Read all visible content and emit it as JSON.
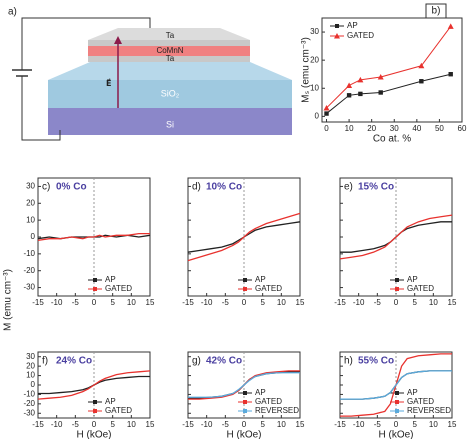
{
  "diagram": {
    "label": "a)",
    "layers": [
      "Ta",
      "CoMnN",
      "Ta",
      "SiO₂",
      "Si"
    ],
    "field": "E⃗"
  },
  "chart_data": [
    {
      "type": "line",
      "panel": "b)",
      "xlabel": "Co at. %",
      "ylabel": "Mₛ (emu cm⁻³)",
      "x": [
        0,
        10,
        15,
        24,
        42,
        55
      ],
      "series": [
        {
          "name": "AP",
          "color": "#222222",
          "marker": "square",
          "values": [
            1,
            7.5,
            8,
            8.5,
            12.5,
            15
          ]
        },
        {
          "name": "GATED",
          "color": "#e8322e",
          "marker": "triangle",
          "values": [
            3,
            11,
            13,
            14,
            18,
            32
          ]
        }
      ],
      "xlim": [
        -2,
        60
      ],
      "xticks": [
        0,
        10,
        20,
        30,
        40,
        50,
        60
      ],
      "ylim": [
        -2,
        35
      ],
      "yticks": [
        0,
        10,
        20,
        30
      ],
      "legend": "upper left"
    },
    {
      "type": "line",
      "panel": "c)",
      "title": "0% Co",
      "ylabel": "M (emu cm⁻³)",
      "x": [
        -15,
        -12,
        -9,
        -6,
        -3,
        -1.5,
        0,
        1.5,
        3,
        6,
        9,
        12,
        15
      ],
      "series": [
        {
          "name": "AP",
          "color": "#222222",
          "values": [
            -1,
            0,
            -1,
            0,
            0,
            0,
            0,
            0,
            1,
            0,
            1,
            0,
            1
          ]
        },
        {
          "name": "GATED",
          "color": "#e8322e",
          "values": [
            -2,
            -1,
            -1,
            0,
            -1,
            0,
            0,
            1,
            0,
            1,
            1,
            2,
            2
          ]
        }
      ],
      "xlim": [
        -15,
        15
      ],
      "xticks": [
        -15,
        -10,
        -5,
        0,
        5,
        10,
        15
      ],
      "ylim": [
        -35,
        35
      ],
      "yticks": [
        -30,
        -20,
        -10,
        0,
        10,
        20,
        30
      ],
      "legend": "lower right"
    },
    {
      "type": "line",
      "panel": "d)",
      "title": "10% Co",
      "x": [
        -15,
        -12,
        -9,
        -6,
        -3,
        -1.5,
        0,
        1.5,
        3,
        6,
        9,
        12,
        15
      ],
      "series": [
        {
          "name": "AP",
          "color": "#222222",
          "values": [
            -9,
            -8,
            -7,
            -6,
            -4,
            -2,
            0,
            2,
            4,
            6,
            7,
            8,
            9
          ]
        },
        {
          "name": "GATED",
          "color": "#e8322e",
          "values": [
            -14,
            -12,
            -10,
            -8,
            -5,
            -3,
            0,
            3,
            5,
            8,
            10,
            12,
            14
          ]
        }
      ],
      "xlim": [
        -15,
        15
      ],
      "xticks": [
        -15,
        -10,
        -5,
        0,
        5,
        10,
        15
      ],
      "ylim": [
        -35,
        35
      ],
      "yticks": [
        -30,
        -20,
        -10,
        0,
        10,
        20,
        30
      ],
      "legend": "lower right"
    },
    {
      "type": "line",
      "panel": "e)",
      "title": "15% Co",
      "x": [
        -15,
        -12,
        -9,
        -6,
        -3,
        -1.5,
        0,
        1.5,
        3,
        6,
        9,
        12,
        15
      ],
      "series": [
        {
          "name": "AP",
          "color": "#222222",
          "values": [
            -9,
            -9,
            -8,
            -7,
            -5,
            -3,
            0,
            3,
            5,
            7,
            8,
            9,
            9
          ]
        },
        {
          "name": "GATED",
          "color": "#e8322e",
          "values": [
            -13,
            -12,
            -11,
            -9,
            -6,
            -3,
            0,
            3,
            6,
            9,
            11,
            12,
            13
          ]
        }
      ],
      "xlim": [
        -15,
        15
      ],
      "xticks": [
        -15,
        -10,
        -5,
        0,
        5,
        10,
        15
      ],
      "ylim": [
        -35,
        35
      ],
      "yticks": [
        -30,
        -20,
        -10,
        0,
        10,
        20,
        30
      ],
      "legend": "lower right"
    },
    {
      "type": "line",
      "panel": "f)",
      "title": "24% Co",
      "xlabel": "H (kOe)",
      "x": [
        -15,
        -12,
        -9,
        -6,
        -3,
        -1.5,
        0,
        1.5,
        3,
        6,
        9,
        12,
        15
      ],
      "series": [
        {
          "name": "AP",
          "color": "#222222",
          "values": [
            -9,
            -9,
            -8,
            -7,
            -5,
            -3,
            0,
            3,
            5,
            7,
            8,
            9,
            9
          ]
        },
        {
          "name": "GATED",
          "color": "#e8322e",
          "values": [
            -15,
            -14,
            -13,
            -11,
            -7,
            -4,
            0,
            4,
            7,
            11,
            13,
            14,
            15
          ]
        }
      ],
      "xlim": [
        -15,
        15
      ],
      "xticks": [
        -15,
        -10,
        -5,
        0,
        5,
        10,
        15
      ],
      "ylim": [
        -35,
        35
      ],
      "yticks": [
        -30,
        -20,
        -10,
        0,
        10,
        20,
        30
      ],
      "legend": "lower right"
    },
    {
      "type": "line",
      "panel": "g)",
      "title": "42% Co",
      "xlabel": "H (kOe)",
      "x": [
        -15,
        -12,
        -9,
        -6,
        -3,
        -1.5,
        0,
        1.5,
        3,
        6,
        9,
        12,
        15
      ],
      "series": [
        {
          "name": "AP",
          "color": "#222222",
          "values": [
            -14,
            -14,
            -13,
            -12,
            -9,
            -6,
            0,
            6,
            9,
            12,
            13,
            14,
            14
          ]
        },
        {
          "name": "GATED",
          "color": "#e8322e",
          "values": [
            -15,
            -15,
            -14,
            -13,
            -10,
            -6,
            0,
            6,
            10,
            13,
            14,
            15,
            15
          ]
        },
        {
          "name": "REVERSED",
          "color": "#5aaadc",
          "values": [
            -13,
            -13,
            -13,
            -12,
            -9,
            -5,
            0,
            5,
            9,
            12,
            13,
            13,
            13
          ]
        }
      ],
      "xlim": [
        -15,
        15
      ],
      "xticks": [
        -15,
        -10,
        -5,
        0,
        5,
        10,
        15
      ],
      "ylim": [
        -35,
        35
      ],
      "yticks": [
        -30,
        -20,
        -10,
        0,
        10,
        20,
        30
      ],
      "legend": "lower right"
    },
    {
      "type": "line",
      "panel": "h)",
      "title": "55% Co",
      "xlabel": "H (kOe)",
      "x": [
        -15,
        -12,
        -9,
        -6,
        -3,
        -1.5,
        0,
        1.5,
        3,
        6,
        9,
        12,
        15
      ],
      "series": [
        {
          "name": "AP",
          "color": "#222222",
          "values": [
            -15,
            -15,
            -15,
            -14,
            -12,
            -8,
            0,
            8,
            12,
            14,
            15,
            15,
            15
          ]
        },
        {
          "name": "GATED",
          "color": "#e8322e",
          "values": [
            -33,
            -33,
            -32,
            -31,
            -28,
            -20,
            0,
            20,
            28,
            31,
            32,
            33,
            33
          ]
        },
        {
          "name": "REVERSED",
          "color": "#5aaadc",
          "values": [
            -15,
            -15,
            -15,
            -14,
            -12,
            -8,
            0,
            8,
            12,
            14,
            15,
            15,
            15
          ]
        }
      ],
      "xlim": [
        -15,
        15
      ],
      "xticks": [
        -15,
        -10,
        -5,
        0,
        5,
        10,
        15
      ],
      "ylim": [
        -35,
        35
      ],
      "yticks": [
        -30,
        -20,
        -10,
        0,
        10,
        20,
        30
      ],
      "legend": "lower right"
    }
  ]
}
